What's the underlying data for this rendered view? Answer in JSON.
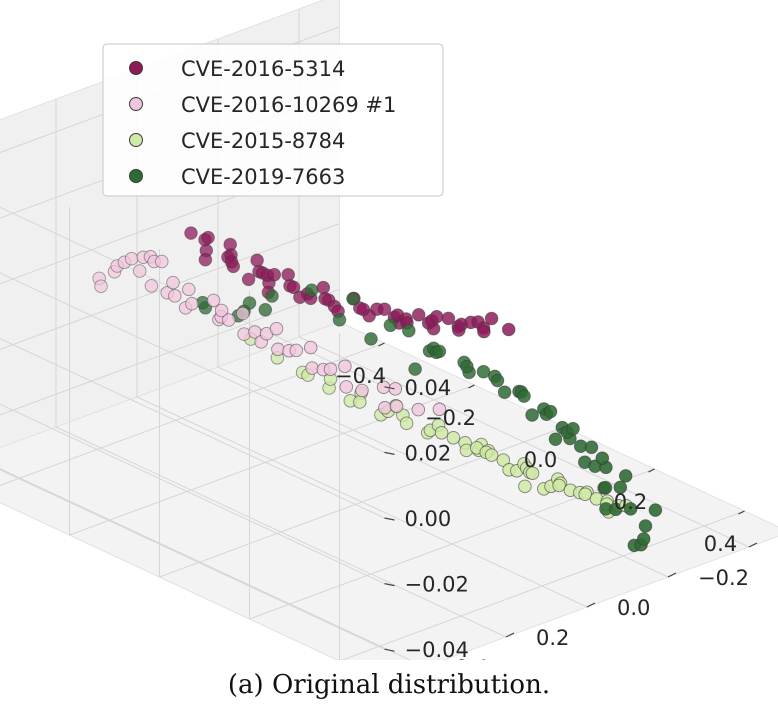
{
  "caption": "(a) Original distribution.",
  "chart_data": {
    "type": "scatter",
    "subtype": "3d-scatter",
    "grid": true,
    "legend_placement": "top-left",
    "xlim": [
      -0.5,
      0.5
    ],
    "ylim": [
      -0.5,
      0.5
    ],
    "zlim": [
      -0.05,
      0.05
    ],
    "x_ticks": [
      "−0.4",
      "−0.2",
      "0.0",
      "0.2",
      "0.4"
    ],
    "y_ticks": [
      "−0.4",
      "−0.2",
      "0.0",
      "0.2",
      "0.4"
    ],
    "z_ticks": [
      "−0.04",
      "−0.02",
      "0.00",
      "0.02",
      "0.04"
    ],
    "series": [
      {
        "name": "CVE-2016-5314",
        "color": "#8e1a5a",
        "points": [
          [
            0.02,
            0.41,
            0.05
          ],
          [
            0.08,
            0.42,
            0.049
          ],
          [
            0.14,
            0.41,
            0.048
          ],
          [
            0.2,
            0.4,
            0.047
          ],
          [
            0.26,
            0.38,
            0.046
          ],
          [
            0.31,
            0.35,
            0.045
          ],
          [
            0.36,
            0.32,
            0.044
          ],
          [
            0.4,
            0.28,
            0.043
          ],
          [
            0.43,
            0.24,
            0.042
          ],
          [
            0.45,
            0.2,
            0.041
          ],
          [
            0.47,
            0.16,
            0.04
          ],
          [
            -0.02,
            0.4,
            0.049
          ],
          [
            0.04,
            0.37,
            0.048
          ],
          [
            0.1,
            0.37,
            0.047
          ],
          [
            0.16,
            0.36,
            0.046
          ],
          [
            0.22,
            0.34,
            0.045
          ],
          [
            0.27,
            0.32,
            0.044
          ],
          [
            0.32,
            0.3,
            0.043
          ],
          [
            0.36,
            0.26,
            0.042
          ],
          [
            0.39,
            0.22,
            0.041
          ],
          [
            0.42,
            0.18,
            0.04
          ],
          [
            0.05,
            0.44,
            0.05
          ],
          [
            0.11,
            0.44,
            0.049
          ],
          [
            0.18,
            0.43,
            0.048
          ],
          [
            0.24,
            0.42,
            0.047
          ],
          [
            0.29,
            0.39,
            0.046
          ],
          [
            0.34,
            0.36,
            0.045
          ],
          [
            0.38,
            0.33,
            0.044
          ],
          [
            0.42,
            0.29,
            0.043
          ],
          [
            0.44,
            0.25,
            0.042
          ],
          [
            0.46,
            0.21,
            0.041
          ],
          [
            0.0,
            0.38,
            0.048
          ],
          [
            0.06,
            0.39,
            0.047
          ],
          [
            0.13,
            0.39,
            0.046
          ],
          [
            0.19,
            0.38,
            0.045
          ],
          [
            0.25,
            0.36,
            0.044
          ],
          [
            0.3,
            0.33,
            0.043
          ],
          [
            0.34,
            0.29,
            0.042
          ],
          [
            0.38,
            0.25,
            0.041
          ],
          [
            0.41,
            0.21,
            0.04
          ],
          [
            0.07,
            0.4,
            0.046
          ],
          [
            0.15,
            0.4,
            0.047
          ],
          [
            0.23,
            0.39,
            0.046
          ],
          [
            0.33,
            0.33,
            0.045
          ],
          [
            0.4,
            0.26,
            0.044
          ],
          [
            0.44,
            0.22,
            0.043
          ],
          [
            0.03,
            0.42,
            0.045
          ],
          [
            0.17,
            0.42,
            0.044
          ],
          [
            0.28,
            0.37,
            0.043
          ],
          [
            0.37,
            0.3,
            0.042
          ],
          [
            0.12,
            0.35,
            0.043
          ],
          [
            0.21,
            0.36,
            0.042
          ],
          [
            0.35,
            0.28,
            0.041
          ],
          [
            0.45,
            0.18,
            0.043
          ],
          [
            0.09,
            0.38,
            0.041
          ]
        ]
      },
      {
        "name": "CVE-2016-10269 #1",
        "color": "#f1c6dd",
        "points": [
          [
            -0.4,
            0.05,
            0.0
          ],
          [
            -0.42,
            0.0,
            -0.01
          ],
          [
            -0.43,
            -0.05,
            -0.015
          ],
          [
            -0.42,
            -0.1,
            -0.02
          ],
          [
            -0.4,
            -0.15,
            -0.025
          ],
          [
            -0.37,
            -0.2,
            -0.03
          ],
          [
            -0.33,
            -0.24,
            -0.035
          ],
          [
            -0.29,
            -0.28,
            -0.04
          ],
          [
            -0.24,
            -0.32,
            -0.045
          ],
          [
            -0.19,
            -0.35,
            -0.05
          ],
          [
            -0.38,
            0.1,
            0.005
          ],
          [
            -0.45,
            0.02,
            -0.012
          ],
          [
            -0.46,
            -0.03,
            -0.017
          ],
          [
            -0.45,
            -0.08,
            -0.022
          ],
          [
            -0.43,
            -0.13,
            -0.027
          ],
          [
            -0.4,
            -0.18,
            -0.032
          ],
          [
            -0.36,
            -0.22,
            -0.037
          ],
          [
            -0.32,
            -0.26,
            -0.042
          ],
          [
            -0.27,
            -0.3,
            -0.047
          ],
          [
            -0.22,
            -0.33,
            -0.05
          ],
          [
            -0.36,
            0.14,
            0.008
          ],
          [
            -0.39,
            0.08,
            0.002
          ],
          [
            -0.44,
            0.06,
            -0.005
          ],
          [
            -0.41,
            -0.02,
            -0.018
          ],
          [
            -0.39,
            -0.08,
            -0.023
          ],
          [
            -0.37,
            -0.12,
            -0.028
          ],
          [
            -0.34,
            -0.17,
            -0.033
          ],
          [
            -0.3,
            -0.21,
            -0.038
          ],
          [
            -0.26,
            -0.25,
            -0.043
          ],
          [
            -0.21,
            -0.29,
            -0.048
          ],
          [
            -0.35,
            0.18,
            0.01
          ],
          [
            -0.33,
            0.22,
            0.012
          ],
          [
            -0.47,
            -0.06,
            -0.02
          ],
          [
            -0.44,
            -0.16,
            -0.03
          ],
          [
            -0.41,
            -0.22,
            -0.035
          ],
          [
            -0.31,
            0.26,
            0.014
          ],
          [
            -0.28,
            0.3,
            0.016
          ],
          [
            -0.38,
            -0.26,
            -0.04
          ],
          [
            -0.34,
            -0.3,
            -0.045
          ],
          [
            -0.17,
            -0.38,
            -0.05
          ],
          [
            -0.26,
            0.36,
            0.018
          ],
          [
            -0.22,
            0.4,
            0.02
          ],
          [
            -0.42,
            -0.12,
            -0.024
          ],
          [
            -0.35,
            -0.14,
            -0.03
          ],
          [
            -0.25,
            -0.36,
            -0.048
          ]
        ]
      },
      {
        "name": "CVE-2015-8784",
        "color": "#cfe9a6",
        "points": [
          [
            0.3,
            0.25,
            0.01
          ],
          [
            0.35,
            0.2,
            0.005
          ],
          [
            0.4,
            0.15,
            0.0
          ],
          [
            0.45,
            0.1,
            -0.005
          ],
          [
            0.48,
            0.05,
            -0.01
          ],
          [
            0.5,
            0.0,
            -0.015
          ],
          [
            0.5,
            -0.05,
            -0.02
          ],
          [
            0.48,
            -0.1,
            -0.025
          ],
          [
            0.25,
            0.28,
            0.012
          ],
          [
            0.2,
            0.3,
            0.014
          ],
          [
            0.33,
            0.17,
            0.0
          ],
          [
            0.38,
            0.11,
            -0.005
          ],
          [
            0.42,
            0.06,
            -0.01
          ],
          [
            0.45,
            0.01,
            -0.015
          ],
          [
            0.46,
            -0.04,
            -0.02
          ],
          [
            0.44,
            -0.09,
            -0.025
          ],
          [
            0.28,
            0.21,
            0.004
          ],
          [
            0.32,
            0.13,
            -0.004
          ],
          [
            0.36,
            0.08,
            -0.009
          ],
          [
            0.4,
            0.03,
            -0.014
          ],
          [
            0.42,
            -0.02,
            -0.019
          ],
          [
            0.4,
            -0.07,
            -0.024
          ],
          [
            0.15,
            0.3,
            0.012
          ],
          [
            0.22,
            0.25,
            0.006
          ],
          [
            0.27,
            0.19,
            0.0
          ],
          [
            0.31,
            0.09,
            -0.008
          ],
          [
            0.35,
            0.04,
            -0.013
          ],
          [
            0.37,
            -0.01,
            -0.018
          ],
          [
            0.53,
            -0.02,
            -0.02
          ],
          [
            0.52,
            0.04,
            -0.012
          ],
          [
            0.47,
            0.14,
            -0.004
          ],
          [
            0.43,
            0.19,
            0.002
          ],
          [
            0.1,
            0.32,
            0.015
          ],
          [
            0.17,
            0.27,
            0.008
          ],
          [
            0.24,
            0.22,
            0.002
          ],
          [
            0.29,
            0.16,
            -0.003
          ],
          [
            0.34,
            0.12,
            -0.007
          ],
          [
            0.39,
            0.07,
            -0.012
          ],
          [
            0.44,
            0.04,
            -0.016
          ],
          [
            0.49,
            -0.06,
            -0.022
          ],
          [
            0.26,
            0.12,
            -0.006
          ],
          [
            0.33,
            0.06,
            -0.011
          ],
          [
            0.05,
            0.33,
            0.018
          ],
          [
            0.12,
            0.28,
            0.01
          ],
          [
            0.19,
            0.24,
            0.004
          ],
          [
            0.47,
            -0.13,
            -0.027
          ],
          [
            0.51,
            0.1,
            -0.008
          ],
          [
            0.38,
            0.02,
            -0.02
          ],
          [
            0.3,
            0.05,
            -0.012
          ],
          [
            0.22,
            0.18,
            0.0
          ]
        ]
      },
      {
        "name": "CVE-2019-7663",
        "color": "#2e6b34",
        "points": [
          [
            -0.15,
            -0.35,
            -0.03
          ],
          [
            -0.1,
            -0.37,
            -0.032
          ],
          [
            -0.05,
            -0.39,
            -0.034
          ],
          [
            0.0,
            -0.4,
            -0.036
          ],
          [
            0.05,
            -0.41,
            -0.038
          ],
          [
            0.1,
            -0.41,
            -0.04
          ],
          [
            0.15,
            -0.4,
            -0.042
          ],
          [
            0.2,
            -0.38,
            -0.044
          ],
          [
            0.25,
            -0.36,
            -0.046
          ],
          [
            0.3,
            -0.33,
            -0.048
          ],
          [
            -0.12,
            -0.31,
            -0.025
          ],
          [
            -0.07,
            -0.33,
            -0.027
          ],
          [
            -0.02,
            -0.35,
            -0.029
          ],
          [
            0.03,
            -0.36,
            -0.031
          ],
          [
            0.08,
            -0.36,
            -0.033
          ],
          [
            0.13,
            -0.35,
            -0.035
          ],
          [
            0.18,
            -0.34,
            -0.037
          ],
          [
            0.23,
            -0.32,
            -0.039
          ],
          [
            0.28,
            -0.29,
            -0.041
          ],
          [
            0.33,
            -0.26,
            -0.043
          ],
          [
            -0.18,
            -0.27,
            -0.02
          ],
          [
            -0.13,
            -0.26,
            -0.018
          ],
          [
            -0.08,
            -0.28,
            -0.022
          ],
          [
            0.0,
            -0.3,
            -0.024
          ],
          [
            0.07,
            -0.31,
            -0.026
          ],
          [
            0.14,
            -0.3,
            -0.028
          ],
          [
            0.21,
            -0.28,
            -0.03
          ],
          [
            0.27,
            -0.25,
            -0.032
          ],
          [
            0.34,
            -0.22,
            -0.034
          ],
          [
            0.38,
            -0.18,
            -0.036
          ],
          [
            -0.2,
            -0.2,
            -0.01
          ],
          [
            -0.22,
            -0.12,
            -0.005
          ],
          [
            -0.2,
            0.0,
            0.0
          ],
          [
            -0.16,
            0.1,
            0.005
          ],
          [
            -0.1,
            0.18,
            0.01
          ],
          [
            -0.05,
            0.25,
            0.015
          ],
          [
            -0.25,
            -0.3,
            -0.03
          ],
          [
            -0.17,
            -0.32,
            -0.035
          ],
          [
            0.06,
            -0.44,
            -0.045
          ],
          [
            0.12,
            -0.46,
            -0.05
          ],
          [
            0.36,
            -0.3,
            -0.048
          ],
          [
            0.41,
            -0.24,
            -0.046
          ],
          [
            0.44,
            -0.2,
            -0.044
          ],
          [
            0.47,
            -0.15,
            -0.04
          ],
          [
            -0.03,
            -0.2,
            -0.015
          ],
          [
            0.04,
            -0.22,
            -0.018
          ],
          [
            0.11,
            -0.23,
            -0.02
          ],
          [
            0.18,
            -0.22,
            -0.022
          ],
          [
            0.25,
            -0.2,
            -0.024
          ],
          [
            -0.06,
            0.32,
            0.02
          ],
          [
            -0.12,
            0.26,
            0.015
          ],
          [
            -0.17,
            0.05,
            0.0
          ],
          [
            -0.14,
            -0.1,
            -0.008
          ],
          [
            0.31,
            -0.38,
            -0.05
          ],
          [
            0.19,
            -0.44,
            -0.05
          ]
        ]
      }
    ]
  }
}
